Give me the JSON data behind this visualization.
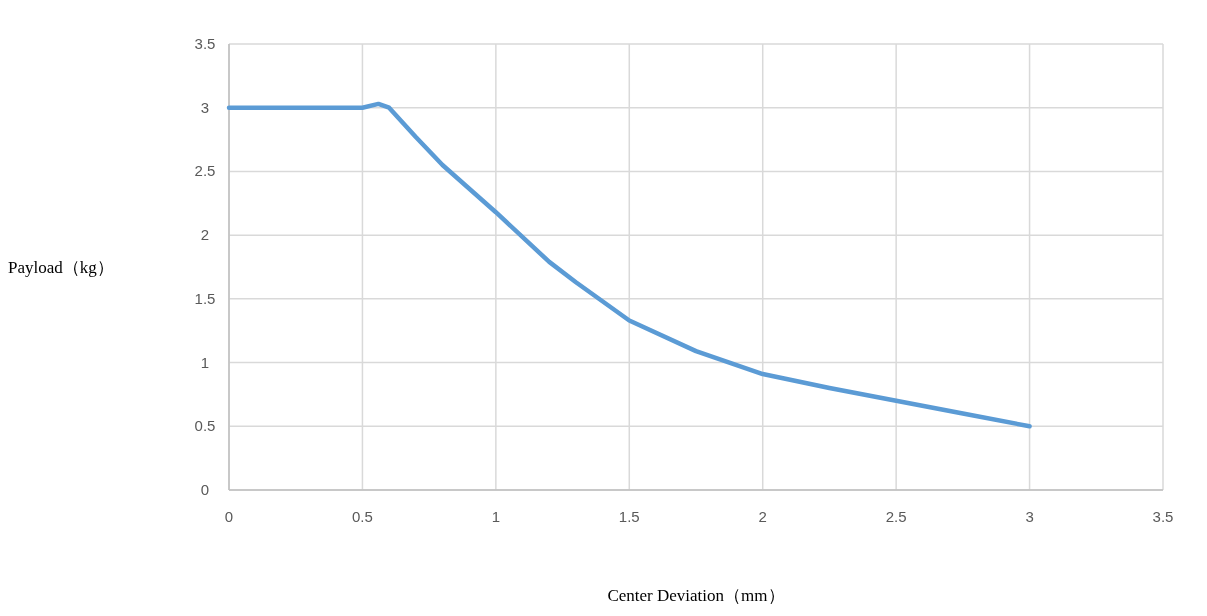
{
  "chart_data": {
    "type": "line",
    "xlabel": "Center Deviation（mm）",
    "ylabel": "Payload（kg）",
    "x": [
      0,
      0.5,
      0.56,
      0.6,
      0.7,
      0.8,
      1.0,
      1.2,
      1.3,
      1.5,
      1.75,
      2.0,
      2.25,
      2.5,
      2.75,
      3.0
    ],
    "series": [
      {
        "color": "#5b9bd5",
        "values": [
          3.0,
          3.0,
          3.03,
          3.0,
          2.77,
          2.55,
          2.18,
          1.79,
          1.63,
          1.33,
          1.09,
          0.91,
          0.8,
          0.7,
          0.6,
          0.5
        ]
      }
    ],
    "xlim": [
      0,
      3.5
    ],
    "ylim": [
      0,
      3.5
    ],
    "xticks": [
      0,
      0.5,
      1,
      1.5,
      2,
      2.5,
      3,
      3.5
    ],
    "yticks": [
      0,
      0.5,
      1,
      1.5,
      2,
      2.5,
      3,
      3.5
    ],
    "grid": true
  }
}
